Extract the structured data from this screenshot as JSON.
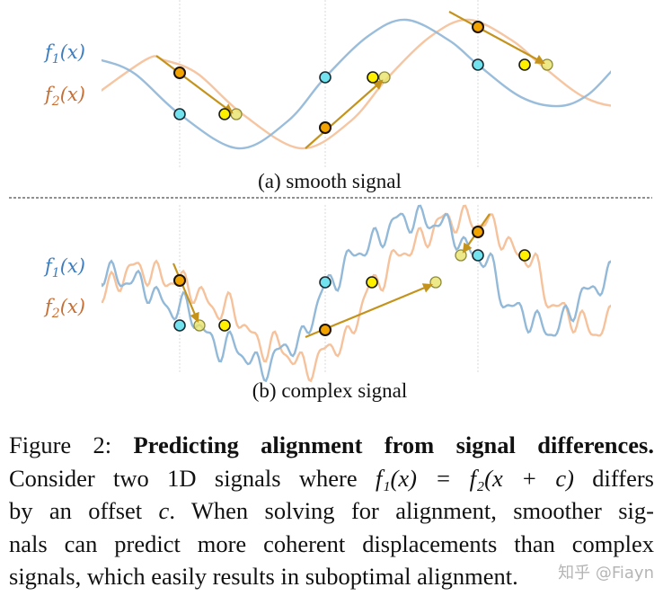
{
  "figure": {
    "legend": {
      "f1": "f",
      "f1_sub": "1",
      "f1_arg": "(x)",
      "f2": "f",
      "f2_sub": "2",
      "f2_arg": "(x)"
    },
    "panels": [
      {
        "caption": "(a) smooth signal",
        "signal": "smooth"
      },
      {
        "caption": "(b) complex signal",
        "signal": "complex"
      }
    ],
    "colors": {
      "f1_curve": "#93b9d9",
      "f1_label": "#3d7dbf",
      "f2_curve": "#f6c29c",
      "f2_label": "#c66f35",
      "cyan_point": "#72e3ee",
      "yellow_point": "#fff000",
      "orange_point": "#f2a300",
      "predicted_point": "#e9e46a",
      "arrow": "#c4931c",
      "guide": "#d8d8d8"
    }
  },
  "caption": {
    "lines": [
      {
        "prefix": "Figure 2: ",
        "bold": "Predicting alignment from signal differences."
      },
      {
        "pre": "Consider two 1D signals where ",
        "math": "f₁(x) = f₂(x + c)",
        "post": " differs"
      },
      {
        "pre": "by an offset ",
        "math": "c",
        "post": ". When solving for alignment, smoother sig-"
      },
      {
        "text": "nals can predict more coherent displacements than complex"
      },
      {
        "text": "signals, which easily results in suboptimal alignment."
      }
    ]
  },
  "watermark": "知乎 @Fiayn"
}
